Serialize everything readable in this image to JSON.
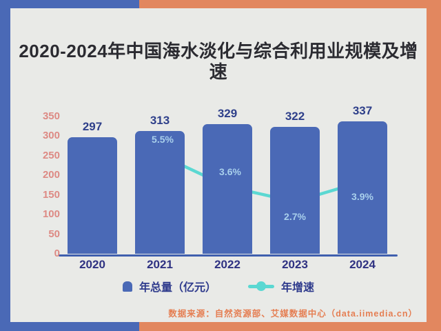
{
  "title": "2020-2024年中国海水淡化与综合利用业规模及增速",
  "chart_data": {
    "type": "bar",
    "combo": "bar+line",
    "title": "2020-2024年中国海水淡化与综合利用业规模及增速",
    "categories": [
      "2020",
      "2021",
      "2022",
      "2023",
      "2024"
    ],
    "series": [
      {
        "name": "年总量（亿元）",
        "type": "bar",
        "values": [
          297,
          313,
          329,
          322,
          337
        ]
      },
      {
        "name": "年增速",
        "type": "line",
        "values": [
          null,
          5.5,
          3.6,
          2.7,
          3.9
        ],
        "labels": [
          null,
          "5.5%",
          "3.6%",
          "2.7%",
          "3.9%"
        ],
        "label_side": [
          null,
          "above",
          "above",
          "below",
          "below"
        ]
      }
    ],
    "ylim": [
      0,
      350
    ],
    "yticks": [
      0,
      50,
      100,
      150,
      200,
      250,
      300,
      350
    ],
    "grid": false,
    "legend_position": "bottom",
    "colors": {
      "bar": "#4a69b6",
      "line": "#5bd8d2",
      "bar_value_label": "#2e3f8a",
      "pct_label": "#a9d0ec",
      "ytick": "#dd8a84",
      "xtick": "#2f3282",
      "axis_line": "#3f5fae",
      "card_bg": "#e9eae7",
      "frame_blue": "#4a69b6",
      "frame_orange": "#e2875f",
      "source_text": "#e57e52",
      "title_text": "#2b2b31"
    }
  },
  "legend": {
    "total_label": "年总量（亿元）",
    "growth_label": "年增速"
  },
  "source": "数据来源：自然资源部、艾媒数据中心（data.iimedia.cn）"
}
